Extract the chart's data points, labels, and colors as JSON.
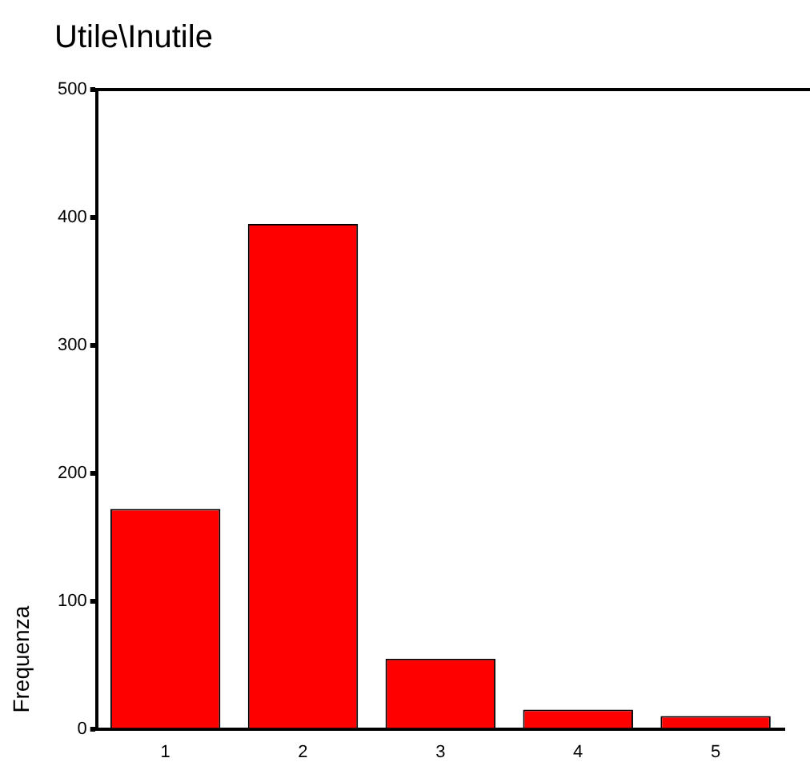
{
  "chart_data": {
    "type": "bar",
    "title": "Utile\\Inutile",
    "ylabel": "Frequenza",
    "categories": [
      "1",
      "2",
      "3",
      "4",
      "5"
    ],
    "values": [
      172,
      395,
      55,
      15,
      10
    ],
    "color": "#ff0000",
    "ylim": [
      0,
      500
    ],
    "yticks": [
      0,
      100,
      200,
      300,
      400,
      500
    ],
    "grid": false,
    "legend": false
  }
}
